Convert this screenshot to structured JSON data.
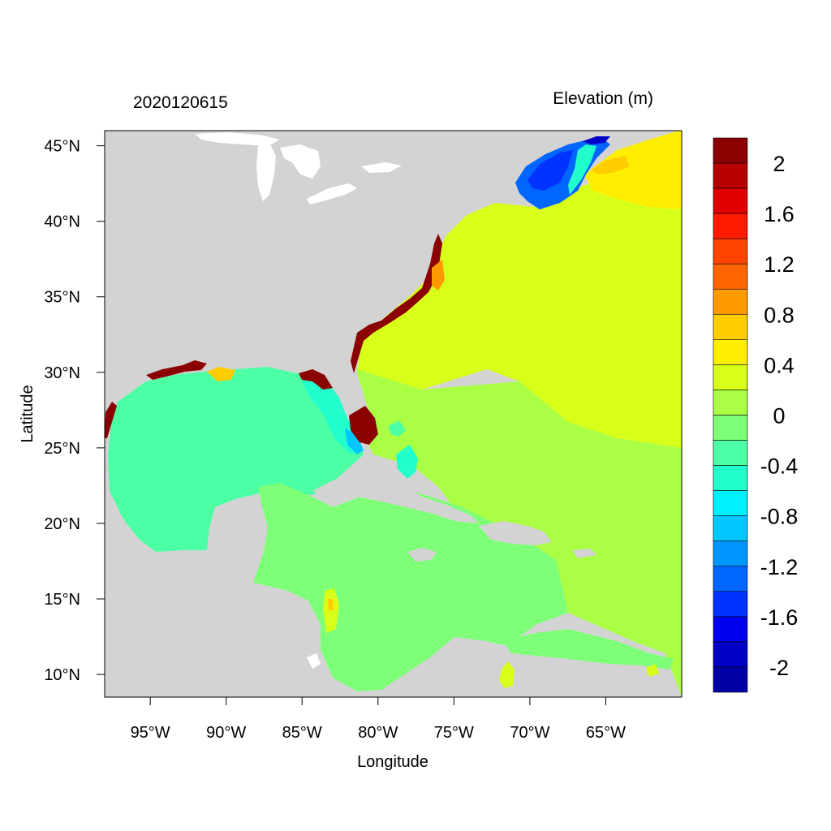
{
  "header": {
    "datetime": "2020120615",
    "variable": "Elevation (m)"
  },
  "axes": {
    "xlabel": "Longitude",
    "ylabel": "Latitude",
    "lon_ticks": [
      "95°W",
      "90°W",
      "85°W",
      "80°W",
      "75°W",
      "70°W",
      "65°W"
    ],
    "lat_ticks": [
      "45°N",
      "40°N",
      "35°N",
      "30°N",
      "25°N",
      "20°N",
      "15°N",
      "10°N"
    ],
    "lon_range": [
      -98,
      -60
    ],
    "lat_range": [
      8.5,
      46
    ]
  },
  "colorbar": {
    "labels": [
      "2",
      "1.6",
      "1.2",
      "0.8",
      "0.4",
      "0",
      "-0.4",
      "-0.8",
      "-1.2",
      "-1.6",
      "-2"
    ],
    "colors": [
      "#8b0000",
      "#b80000",
      "#e00000",
      "#ff1a00",
      "#ff4400",
      "#ff6600",
      "#ff9900",
      "#ffcc00",
      "#ffee00",
      "#d8ff1a",
      "#aaff44",
      "#7dff77",
      "#4dffa4",
      "#22ffcc",
      "#00f0ff",
      "#00c8ff",
      "#0096ff",
      "#0066ff",
      "#0033ff",
      "#0000ee",
      "#0000c8",
      "#0000a8"
    ]
  },
  "colors": {
    "land": "#d3d3d3",
    "lakes": "#ffffff",
    "gulf": "#4dffa4",
    "caribbean": "#7dff77",
    "atlantic_south": "#aaff44",
    "atlantic_north": "#d8ff1a",
    "gulf_of_maine": "#0066ff",
    "scotian": "#ffee00",
    "surge_high": "#8b0000"
  }
}
